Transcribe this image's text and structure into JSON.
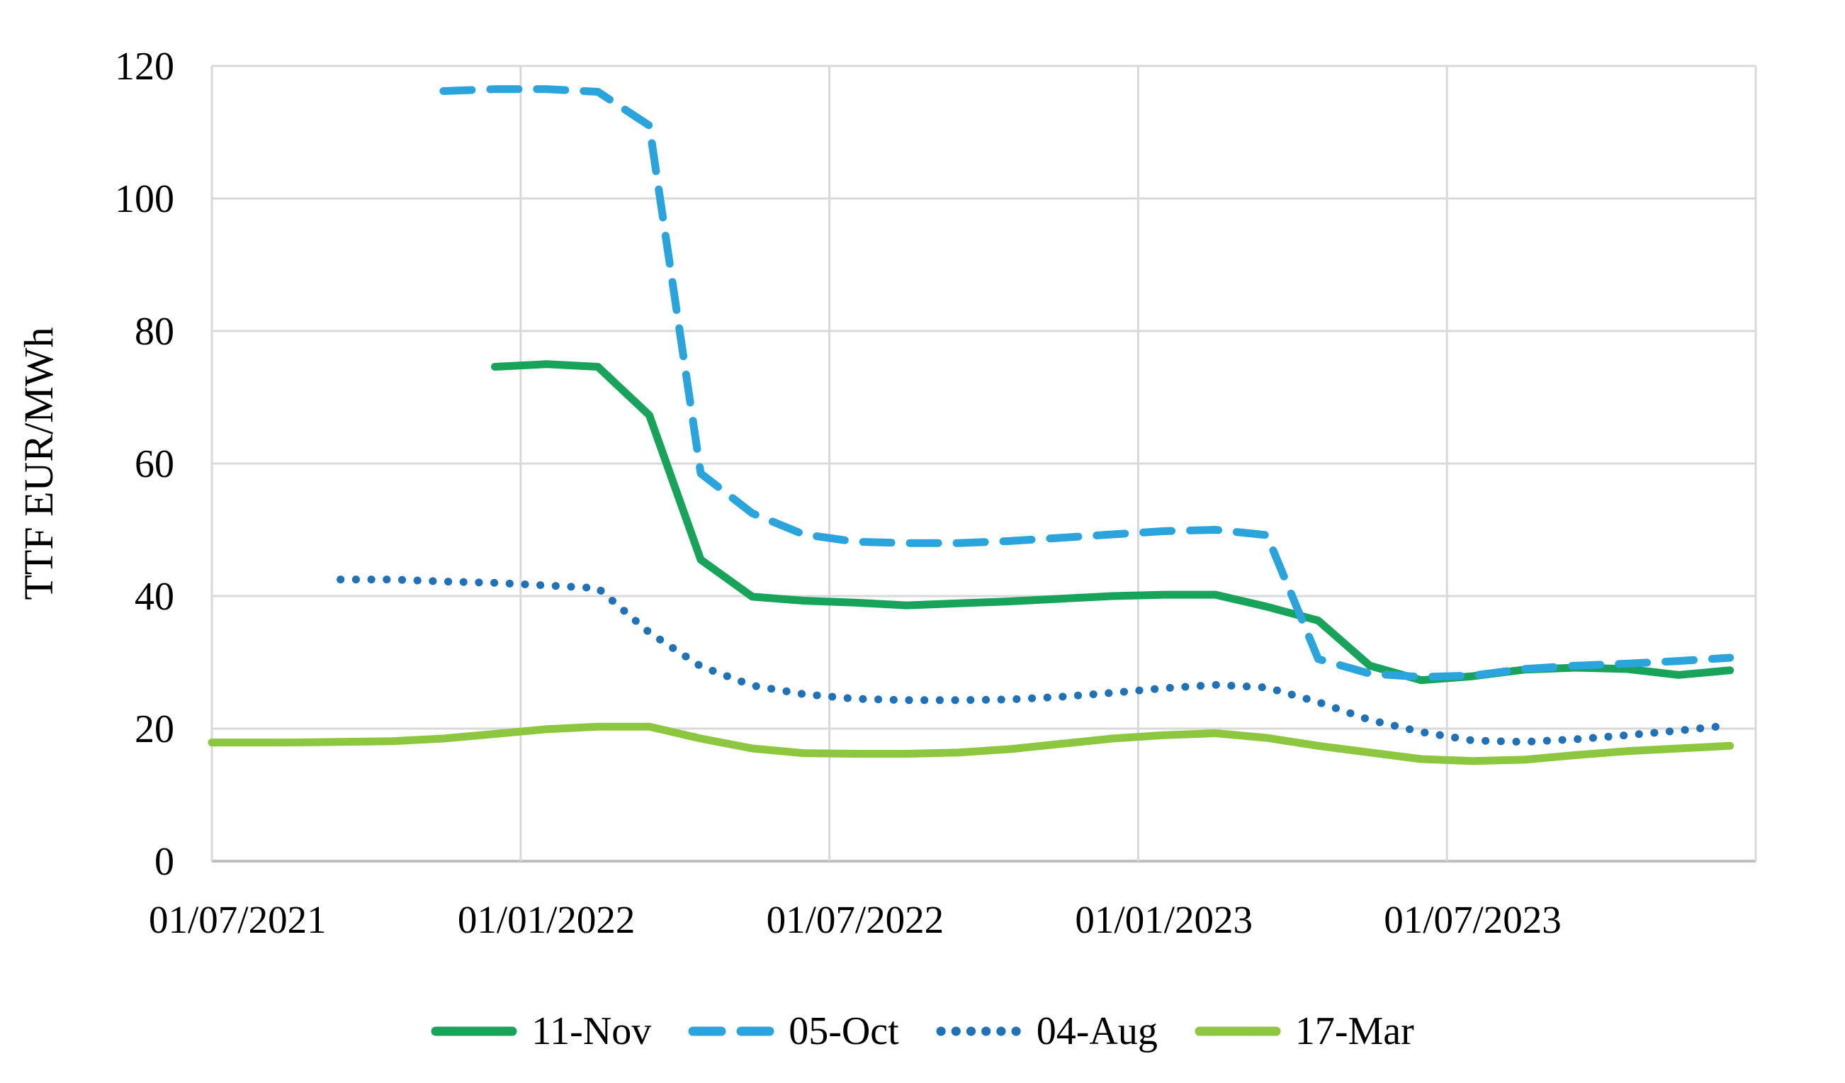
{
  "chart_data": {
    "type": "line",
    "title": "",
    "xlabel": "",
    "ylabel": "TTF EUR/MWh",
    "ylim": [
      0,
      120
    ],
    "y_ticks": [
      0,
      20,
      40,
      60,
      80,
      100,
      120
    ],
    "x_tick_labels": [
      "01/07/2021",
      "01/01/2022",
      "01/07/2022",
      "01/01/2023",
      "01/07/2023"
    ],
    "x_months": [
      "2021-07",
      "2021-08",
      "2021-09",
      "2021-10",
      "2021-11",
      "2021-12",
      "2022-01",
      "2022-02",
      "2022-03",
      "2022-04",
      "2022-05",
      "2022-06",
      "2022-07",
      "2022-08",
      "2022-09",
      "2022-10",
      "2022-11",
      "2022-12",
      "2023-01",
      "2023-02",
      "2023-03",
      "2023-04",
      "2023-05",
      "2023-06",
      "2023-07",
      "2023-08",
      "2023-09",
      "2023-10",
      "2023-11",
      "2023-12"
    ],
    "grid": true,
    "legend_position": "bottom",
    "series": [
      {
        "name": "11-Nov",
        "color": "#18A35A",
        "style": "solid",
        "points": [
          [
            5,
            74.6
          ],
          [
            6,
            75.0
          ],
          [
            7,
            74.6
          ],
          [
            8,
            67.3
          ],
          [
            9,
            45.5
          ],
          [
            10,
            39.9
          ],
          [
            11,
            39.3
          ],
          [
            12,
            39.0
          ],
          [
            13,
            38.6
          ],
          [
            14,
            38.9
          ],
          [
            15,
            39.2
          ],
          [
            16,
            39.6
          ],
          [
            17,
            40.0
          ],
          [
            18,
            40.2
          ],
          [
            19,
            40.2
          ],
          [
            20,
            38.4
          ],
          [
            21,
            36.3
          ],
          [
            22,
            29.5
          ],
          [
            23,
            27.3
          ],
          [
            24,
            27.9
          ],
          [
            25,
            28.9
          ],
          [
            26,
            29.2
          ],
          [
            27,
            29.0
          ],
          [
            28,
            28.1
          ],
          [
            29,
            28.8
          ]
        ]
      },
      {
        "name": "05-Oct",
        "color": "#29A4DC",
        "style": "dashed",
        "points": [
          [
            4,
            116.2
          ],
          [
            5,
            116.5
          ],
          [
            6,
            116.5
          ],
          [
            7,
            116.1
          ],
          [
            8,
            111.0
          ],
          [
            9,
            58.5
          ],
          [
            10,
            52.5
          ],
          [
            11,
            49.3
          ],
          [
            12,
            48.2
          ],
          [
            13,
            48.0
          ],
          [
            14,
            48.0
          ],
          [
            15,
            48.3
          ],
          [
            16,
            48.8
          ],
          [
            17,
            49.3
          ],
          [
            18,
            49.8
          ],
          [
            19,
            50.0
          ],
          [
            20,
            49.2
          ],
          [
            21,
            30.5
          ],
          [
            22,
            28.3
          ],
          [
            23,
            27.8
          ],
          [
            24,
            28.0
          ],
          [
            25,
            29.0
          ],
          [
            26,
            29.5
          ],
          [
            27,
            29.8
          ],
          [
            28,
            30.2
          ],
          [
            29,
            30.7
          ]
        ]
      },
      {
        "name": "04-Aug",
        "color": "#1F72B8",
        "style": "dotted",
        "points": [
          [
            2,
            42.5
          ],
          [
            3,
            42.5
          ],
          [
            4,
            42.2
          ],
          [
            5,
            42.0
          ],
          [
            6,
            41.6
          ],
          [
            7,
            41.2
          ],
          [
            8,
            34.5
          ],
          [
            9,
            29.4
          ],
          [
            10,
            26.5
          ],
          [
            11,
            25.2
          ],
          [
            12,
            24.5
          ],
          [
            13,
            24.3
          ],
          [
            14,
            24.3
          ],
          [
            15,
            24.4
          ],
          [
            16,
            24.8
          ],
          [
            17,
            25.4
          ],
          [
            18,
            26.1
          ],
          [
            19,
            26.6
          ],
          [
            20,
            26.2
          ],
          [
            21,
            24.0
          ],
          [
            22,
            21.3
          ],
          [
            23,
            19.5
          ],
          [
            24,
            18.2
          ],
          [
            25,
            18.0
          ],
          [
            26,
            18.4
          ],
          [
            27,
            19.0
          ],
          [
            28,
            19.7
          ],
          [
            29,
            20.5
          ]
        ]
      },
      {
        "name": "17-Mar",
        "color": "#8DC63F",
        "style": "solid",
        "points": [
          [
            -0.5,
            17.9
          ],
          [
            0,
            17.9
          ],
          [
            1,
            17.9
          ],
          [
            2,
            18.0
          ],
          [
            3,
            18.1
          ],
          [
            4,
            18.5
          ],
          [
            5,
            19.2
          ],
          [
            6,
            19.9
          ],
          [
            7,
            20.3
          ],
          [
            8,
            20.3
          ],
          [
            9,
            18.5
          ],
          [
            10,
            17.0
          ],
          [
            11,
            16.3
          ],
          [
            12,
            16.2
          ],
          [
            13,
            16.2
          ],
          [
            14,
            16.4
          ],
          [
            15,
            16.9
          ],
          [
            16,
            17.7
          ],
          [
            17,
            18.5
          ],
          [
            18,
            19.0
          ],
          [
            19,
            19.3
          ],
          [
            20,
            18.6
          ],
          [
            21,
            17.4
          ],
          [
            22,
            16.4
          ],
          [
            23,
            15.4
          ],
          [
            24,
            15.1
          ],
          [
            25,
            15.3
          ],
          [
            26,
            16.0
          ],
          [
            27,
            16.6
          ],
          [
            28,
            17.0
          ],
          [
            29,
            17.4
          ]
        ]
      }
    ]
  },
  "colors": {
    "gridline": "#D9D9D9",
    "axis_line": "#BFBFBF",
    "text": "#000000",
    "background": "#FFFFFF"
  }
}
